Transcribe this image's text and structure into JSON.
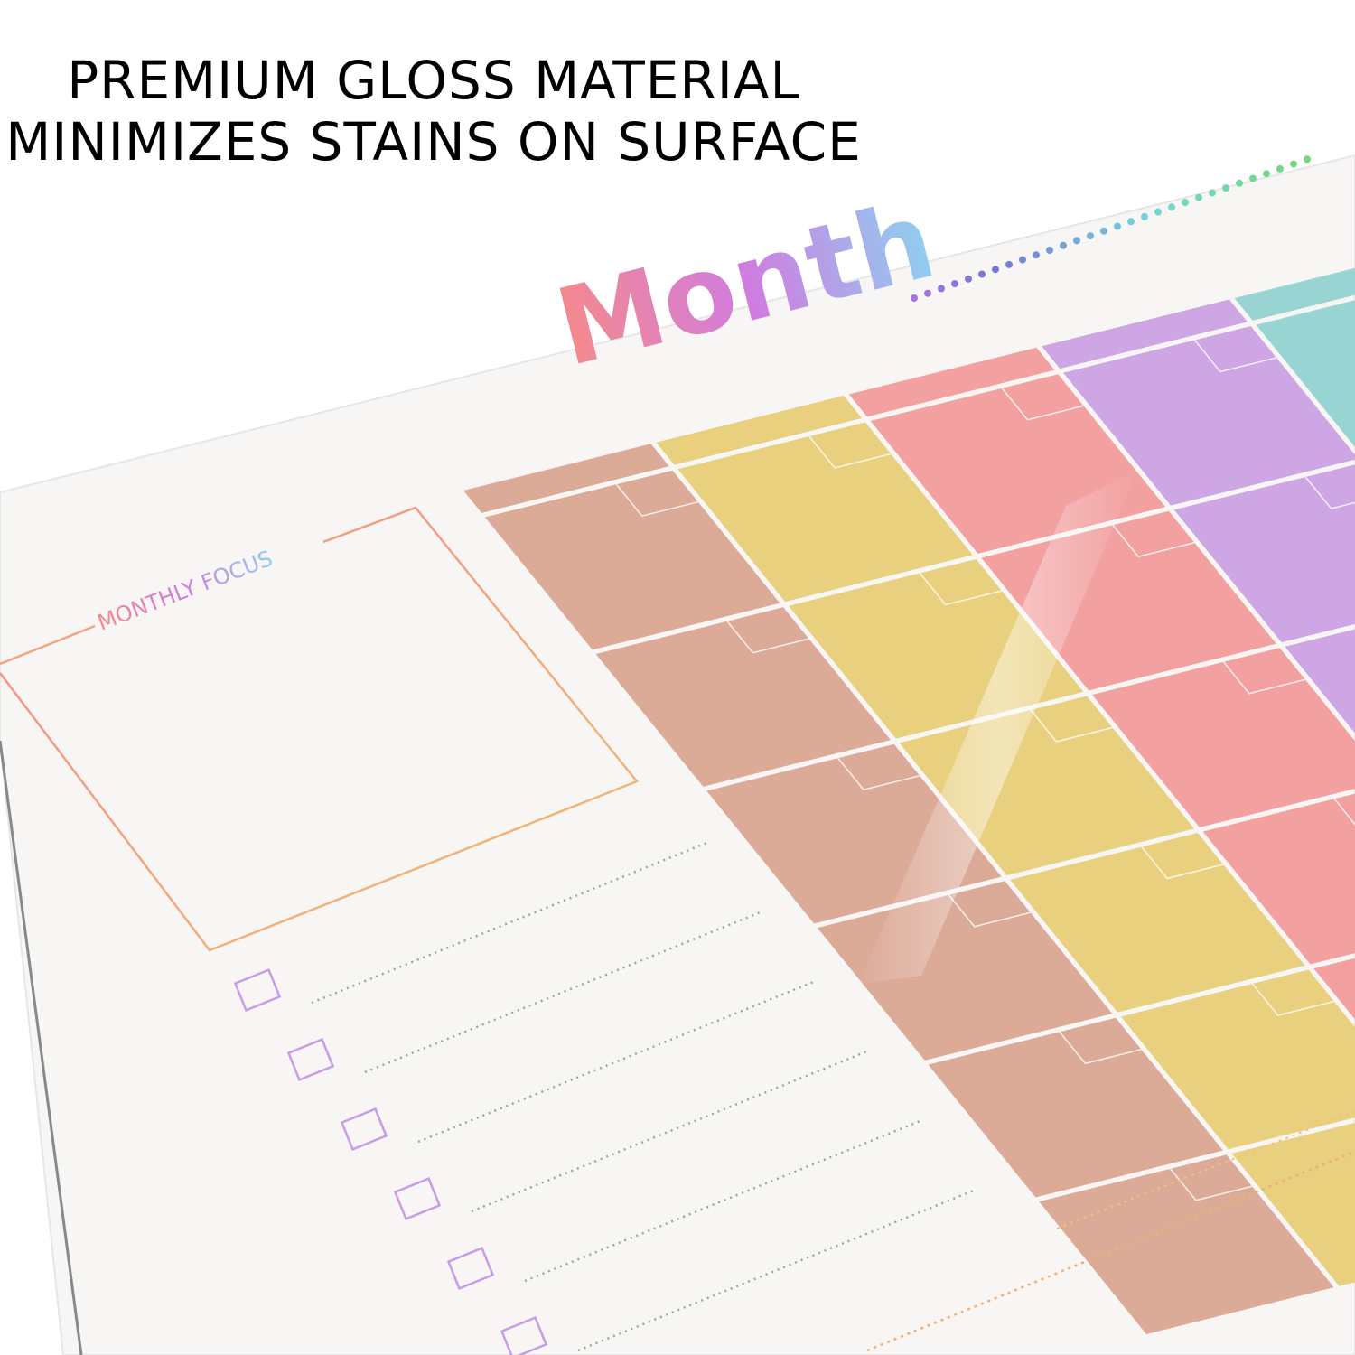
{
  "header": {
    "line1": "PREMIUM GLOSS MATERIAL",
    "line2": "MINIMIZES STAINS ON SURFACE"
  },
  "planner": {
    "title": "Month",
    "focus_label": "MONTHLY FOCUS"
  }
}
